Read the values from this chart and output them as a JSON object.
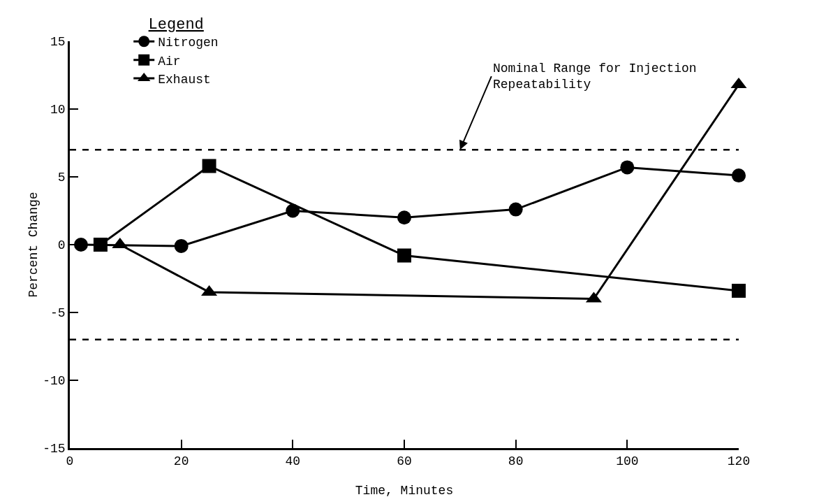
{
  "chart_data": {
    "type": "line",
    "xlabel": "Time, Minutes",
    "ylabel": "Percent Change",
    "legend_title": "Legend",
    "legend": "top left",
    "line_style": "solid",
    "grid": false,
    "xlim": [
      0,
      120
    ],
    "xticks": [
      0,
      20,
      40,
      60,
      80,
      100,
      120
    ],
    "ylim": [
      -15,
      15
    ],
    "yticks": [
      -15,
      -10,
      -5,
      0,
      5,
      10,
      15
    ],
    "series": [
      {
        "name": "Nitrogen",
        "color": "#000000",
        "marker": "circle",
        "x": [
          2,
          20,
          40,
          60,
          80,
          100,
          120
        ],
        "values": [
          0,
          -0.1,
          2.5,
          2,
          2.6,
          5.7,
          5.1
        ]
      },
      {
        "name": "Air",
        "color": "#000000",
        "marker": "square",
        "x": [
          5.5,
          25,
          60,
          120
        ],
        "values": [
          0,
          5.8,
          -0.8,
          -3.4
        ]
      },
      {
        "name": "Exhaust",
        "color": "#000000",
        "marker": "triangle",
        "x": [
          9,
          25,
          94,
          120
        ],
        "values": [
          0,
          -3.5,
          -4,
          11.8
        ]
      }
    ],
    "ref_lines": [
      {
        "axis": "y",
        "value": 7,
        "color": "#000000",
        "line_style": "dashed"
      },
      {
        "axis": "y",
        "value": -7,
        "color": "#000000",
        "line_style": "dashed"
      }
    ],
    "annotations": [
      {
        "text": "Nominal Range for Injection\nRepeatability",
        "x": 70,
        "y": 7
      }
    ]
  }
}
